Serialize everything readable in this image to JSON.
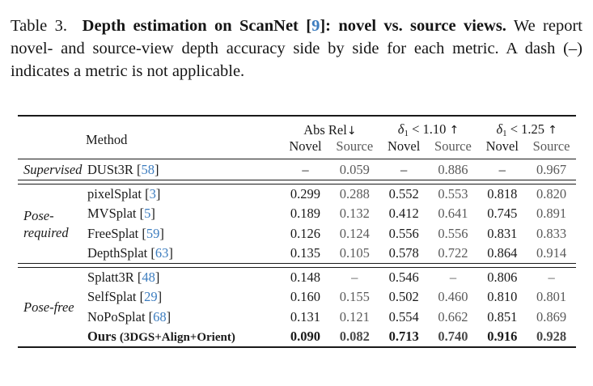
{
  "colors": {
    "citation_blue": "#3d7dbf",
    "source_gray": "#5a5a5a",
    "text_black": "#1a1a1a"
  },
  "punct": {
    "open": "[",
    "close": "]"
  },
  "caption": {
    "prefix": "Table 3.",
    "bold_before_cite": "Depth estimation on ScanNet ",
    "cite": "9",
    "bold_after_cite": ":  novel vs. source views.",
    "rest": " We report novel- and source-view depth accuracy side by side for each metric. A dash (–) indicates a metric is not applicable."
  },
  "table": {
    "method_header": "Method",
    "metrics": [
      {
        "label": "Abs Rel",
        "arrow": "↓"
      },
      {
        "symbol": "δ",
        "sub": "1",
        "rest": "< 1.10",
        "arrow": "↑"
      },
      {
        "symbol": "δ",
        "sub": "1",
        "rest": "< 1.25",
        "arrow": "↑"
      }
    ],
    "subheaders": {
      "novel": "Novel",
      "source": "Source"
    },
    "groups": [
      {
        "label": "Supervised",
        "rows": [
          {
            "name": "DUSt3R",
            "cite": "58",
            "values": [
              "–",
              "0.059",
              "–",
              "0.886",
              "–",
              "0.967"
            ]
          }
        ]
      },
      {
        "label": "Pose-required",
        "rows": [
          {
            "name": "pixelSplat",
            "cite": "3",
            "values": [
              "0.299",
              "0.288",
              "0.552",
              "0.553",
              "0.818",
              "0.820"
            ]
          },
          {
            "name": "MVSplat",
            "cite": "5",
            "values": [
              "0.189",
              "0.132",
              "0.412",
              "0.641",
              "0.745",
              "0.891"
            ]
          },
          {
            "name": "FreeSplat",
            "cite": "59",
            "values": [
              "0.126",
              "0.124",
              "0.556",
              "0.556",
              "0.831",
              "0.833"
            ]
          },
          {
            "name": "DepthSplat",
            "cite": "63",
            "values": [
              "0.135",
              "0.105",
              "0.578",
              "0.722",
              "0.864",
              "0.914"
            ]
          }
        ]
      },
      {
        "label": "Pose-free",
        "rows": [
          {
            "name": "Splatt3R",
            "cite": "48",
            "values": [
              "0.148",
              "–",
              "0.546",
              "–",
              "0.806",
              "–"
            ]
          },
          {
            "name": "SelfSplat",
            "cite": "29",
            "values": [
              "0.160",
              "0.155",
              "0.502",
              "0.460",
              "0.810",
              "0.801"
            ]
          },
          {
            "name": "NoPoSplat",
            "cite": "68",
            "values": [
              "0.131",
              "0.121",
              "0.554",
              "0.662",
              "0.851",
              "0.869"
            ]
          },
          {
            "name": "Ours",
            "suffix": "(3DGS+Align+Orient)",
            "values": [
              "0.090",
              "0.082",
              "0.713",
              "0.740",
              "0.916",
              "0.928"
            ]
          }
        ]
      }
    ]
  }
}
